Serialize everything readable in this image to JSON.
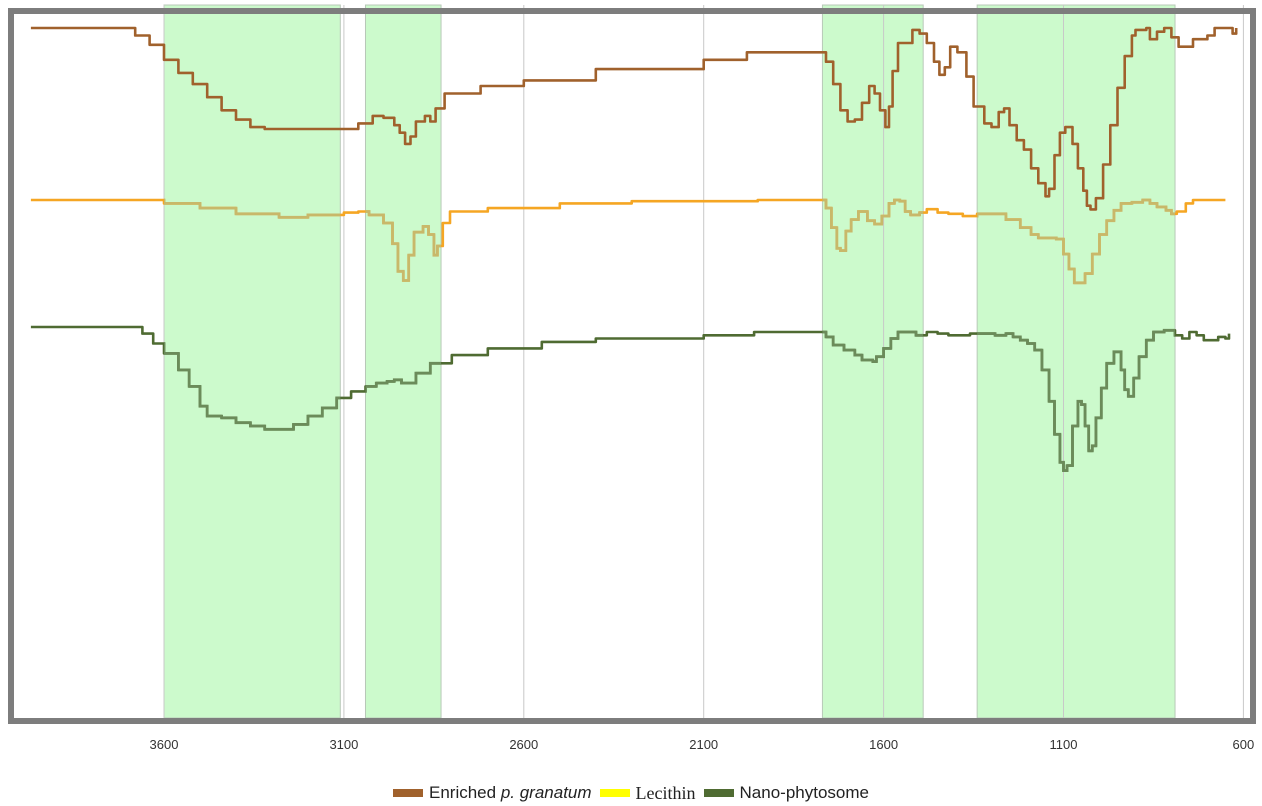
{
  "chart_data": {
    "type": "line",
    "title": "",
    "xlabel": "",
    "ylabel": "",
    "x_reversed": true,
    "xlim": [
      4000,
      590
    ],
    "xticks": [
      3600,
      3100,
      2600,
      2100,
      1600,
      1100,
      600
    ],
    "x_tick_labels": [
      "3600",
      "3100",
      "2600",
      "2100",
      "1600",
      "1100",
      "600"
    ],
    "vertical_gridlines_at": [
      3600,
      3100,
      2600,
      2100,
      1600,
      1100,
      600
    ],
    "highlight_bands": [
      {
        "from": 3600,
        "to": 3110
      },
      {
        "from": 3040,
        "to": 2830
      },
      {
        "from": 1770,
        "to": 1490
      },
      {
        "from": 1340,
        "to": 790
      }
    ],
    "legend": {
      "position": "bottom",
      "items": [
        {
          "prefix": "Enriched ",
          "italic": "p. granatum",
          "color": "#A0612C"
        },
        {
          "label": "Lecithin",
          "color": "#FFFF00"
        },
        {
          "label": "Nano-phytosome",
          "color": "#4F6B32"
        }
      ]
    },
    "series": [
      {
        "key": "enriched",
        "line_color": "#A0612C",
        "points": [
          [
            3970,
            100
          ],
          [
            3720,
            100
          ],
          [
            3680,
            96
          ],
          [
            3640,
            91
          ],
          [
            3600,
            83
          ],
          [
            3560,
            76
          ],
          [
            3520,
            70
          ],
          [
            3480,
            63
          ],
          [
            3440,
            56
          ],
          [
            3400,
            51
          ],
          [
            3360,
            47
          ],
          [
            3320,
            46
          ],
          [
            3100,
            46
          ],
          [
            3060,
            49
          ],
          [
            3020,
            53
          ],
          [
            2990,
            52
          ],
          [
            2960,
            48
          ],
          [
            2945,
            44
          ],
          [
            2930,
            38
          ],
          [
            2915,
            42
          ],
          [
            2900,
            50
          ],
          [
            2875,
            53
          ],
          [
            2860,
            50
          ],
          [
            2845,
            57
          ],
          [
            2820,
            65
          ],
          [
            2720,
            69
          ],
          [
            2600,
            72
          ],
          [
            2400,
            78
          ],
          [
            2100,
            83
          ],
          [
            1980,
            87
          ],
          [
            1775,
            87
          ],
          [
            1760,
            82
          ],
          [
            1740,
            70
          ],
          [
            1720,
            56
          ],
          [
            1700,
            50
          ],
          [
            1680,
            51
          ],
          [
            1660,
            60
          ],
          [
            1640,
            69
          ],
          [
            1625,
            65
          ],
          [
            1610,
            56
          ],
          [
            1595,
            47
          ],
          [
            1585,
            58
          ],
          [
            1575,
            77
          ],
          [
            1560,
            92
          ],
          [
            1520,
            99
          ],
          [
            1500,
            97
          ],
          [
            1480,
            92
          ],
          [
            1460,
            82
          ],
          [
            1445,
            75
          ],
          [
            1430,
            79
          ],
          [
            1415,
            90
          ],
          [
            1395,
            87
          ],
          [
            1370,
            74
          ],
          [
            1350,
            58
          ],
          [
            1320,
            49
          ],
          [
            1300,
            47
          ],
          [
            1280,
            55
          ],
          [
            1265,
            57
          ],
          [
            1250,
            48
          ],
          [
            1230,
            40
          ],
          [
            1210,
            35
          ],
          [
            1190,
            25
          ],
          [
            1170,
            17
          ],
          [
            1150,
            10
          ],
          [
            1140,
            14
          ],
          [
            1125,
            32
          ],
          [
            1110,
            44
          ],
          [
            1095,
            47
          ],
          [
            1075,
            38
          ],
          [
            1060,
            25
          ],
          [
            1045,
            13
          ],
          [
            1035,
            5
          ],
          [
            1025,
            3
          ],
          [
            1010,
            9
          ],
          [
            990,
            27
          ],
          [
            970,
            48
          ],
          [
            950,
            68
          ],
          [
            930,
            85
          ],
          [
            910,
            96
          ],
          [
            900,
            99
          ],
          [
            870,
            100
          ],
          [
            860,
            94
          ],
          [
            840,
            98
          ],
          [
            820,
            100
          ],
          [
            800,
            95
          ],
          [
            780,
            90
          ],
          [
            760,
            90
          ],
          [
            740,
            94
          ],
          [
            700,
            96
          ],
          [
            680,
            100
          ],
          [
            640,
            100
          ],
          [
            630,
            97
          ],
          [
            620,
            100
          ]
        ]
      },
      {
        "key": "lecithin",
        "line_color": "#F5A623",
        "band_overlay_color": "#C8B86A",
        "points": [
          [
            3970,
            100
          ],
          [
            3630,
            100
          ],
          [
            3600,
            97
          ],
          [
            3500,
            93
          ],
          [
            3400,
            88
          ],
          [
            3280,
            85
          ],
          [
            3200,
            87
          ],
          [
            3100,
            89
          ],
          [
            3060,
            90
          ],
          [
            3030,
            87
          ],
          [
            2990,
            80
          ],
          [
            2965,
            62
          ],
          [
            2950,
            38
          ],
          [
            2935,
            30
          ],
          [
            2920,
            52
          ],
          [
            2905,
            72
          ],
          [
            2880,
            77
          ],
          [
            2865,
            70
          ],
          [
            2850,
            52
          ],
          [
            2840,
            60
          ],
          [
            2825,
            80
          ],
          [
            2805,
            90
          ],
          [
            2700,
            93
          ],
          [
            2500,
            97
          ],
          [
            2300,
            99
          ],
          [
            2100,
            99
          ],
          [
            1950,
            100
          ],
          [
            1775,
            100
          ],
          [
            1760,
            93
          ],
          [
            1745,
            76
          ],
          [
            1730,
            58
          ],
          [
            1720,
            56
          ],
          [
            1705,
            73
          ],
          [
            1690,
            83
          ],
          [
            1670,
            90
          ],
          [
            1645,
            82
          ],
          [
            1625,
            79
          ],
          [
            1605,
            86
          ],
          [
            1585,
            97
          ],
          [
            1570,
            100
          ],
          [
            1555,
            99
          ],
          [
            1540,
            90
          ],
          [
            1525,
            87
          ],
          [
            1500,
            89
          ],
          [
            1480,
            92
          ],
          [
            1450,
            89
          ],
          [
            1420,
            88
          ],
          [
            1380,
            86
          ],
          [
            1340,
            88
          ],
          [
            1300,
            88
          ],
          [
            1260,
            83
          ],
          [
            1220,
            76
          ],
          [
            1190,
            70
          ],
          [
            1170,
            67
          ],
          [
            1140,
            67
          ],
          [
            1120,
            66
          ],
          [
            1100,
            53
          ],
          [
            1085,
            40
          ],
          [
            1070,
            28
          ],
          [
            1055,
            28
          ],
          [
            1040,
            36
          ],
          [
            1020,
            53
          ],
          [
            1000,
            70
          ],
          [
            980,
            82
          ],
          [
            960,
            91
          ],
          [
            940,
            97
          ],
          [
            910,
            98
          ],
          [
            880,
            100
          ],
          [
            860,
            97
          ],
          [
            840,
            94
          ],
          [
            815,
            91
          ],
          [
            800,
            88
          ],
          [
            785,
            90
          ],
          [
            760,
            97
          ],
          [
            740,
            100
          ],
          [
            650,
            100
          ]
        ]
      },
      {
        "key": "nano",
        "line_color": "#4F6B32",
        "band_overlay_color": "#6B8B5A",
        "points": [
          [
            3970,
            100
          ],
          [
            3690,
            100
          ],
          [
            3660,
            96
          ],
          [
            3630,
            90
          ],
          [
            3600,
            84
          ],
          [
            3560,
            74
          ],
          [
            3530,
            64
          ],
          [
            3500,
            52
          ],
          [
            3480,
            46
          ],
          [
            3440,
            45
          ],
          [
            3400,
            42
          ],
          [
            3360,
            40
          ],
          [
            3320,
            38
          ],
          [
            3280,
            38
          ],
          [
            3240,
            41
          ],
          [
            3200,
            46
          ],
          [
            3160,
            51
          ],
          [
            3120,
            57
          ],
          [
            3080,
            61
          ],
          [
            3040,
            64
          ],
          [
            3010,
            66
          ],
          [
            2980,
            67
          ],
          [
            2960,
            68
          ],
          [
            2940,
            66
          ],
          [
            2900,
            72
          ],
          [
            2860,
            78
          ],
          [
            2800,
            83
          ],
          [
            2700,
            87
          ],
          [
            2550,
            91
          ],
          [
            2400,
            93
          ],
          [
            2200,
            93
          ],
          [
            2100,
            95
          ],
          [
            1960,
            97
          ],
          [
            1775,
            97
          ],
          [
            1760,
            94
          ],
          [
            1740,
            89
          ],
          [
            1710,
            86
          ],
          [
            1680,
            83
          ],
          [
            1660,
            80
          ],
          [
            1630,
            79
          ],
          [
            1620,
            82
          ],
          [
            1600,
            87
          ],
          [
            1580,
            93
          ],
          [
            1560,
            97
          ],
          [
            1530,
            97
          ],
          [
            1510,
            95
          ],
          [
            1480,
            97
          ],
          [
            1450,
            96
          ],
          [
            1420,
            95
          ],
          [
            1360,
            96
          ],
          [
            1320,
            96
          ],
          [
            1290,
            95
          ],
          [
            1260,
            96
          ],
          [
            1240,
            94
          ],
          [
            1220,
            92
          ],
          [
            1200,
            90
          ],
          [
            1180,
            86
          ],
          [
            1160,
            74
          ],
          [
            1140,
            55
          ],
          [
            1125,
            35
          ],
          [
            1110,
            18
          ],
          [
            1100,
            13
          ],
          [
            1090,
            16
          ],
          [
            1075,
            40
          ],
          [
            1060,
            55
          ],
          [
            1050,
            53
          ],
          [
            1040,
            40
          ],
          [
            1030,
            25
          ],
          [
            1020,
            28
          ],
          [
            1010,
            45
          ],
          [
            995,
            63
          ],
          [
            980,
            78
          ],
          [
            960,
            85
          ],
          [
            940,
            74
          ],
          [
            930,
            62
          ],
          [
            920,
            58
          ],
          [
            905,
            69
          ],
          [
            890,
            82
          ],
          [
            870,
            92
          ],
          [
            850,
            97
          ],
          [
            820,
            98
          ],
          [
            790,
            95
          ],
          [
            770,
            93
          ],
          [
            750,
            97
          ],
          [
            730,
            95
          ],
          [
            710,
            92
          ],
          [
            690,
            92
          ],
          [
            670,
            94
          ],
          [
            650,
            93
          ],
          [
            640,
            96
          ]
        ]
      }
    ]
  }
}
